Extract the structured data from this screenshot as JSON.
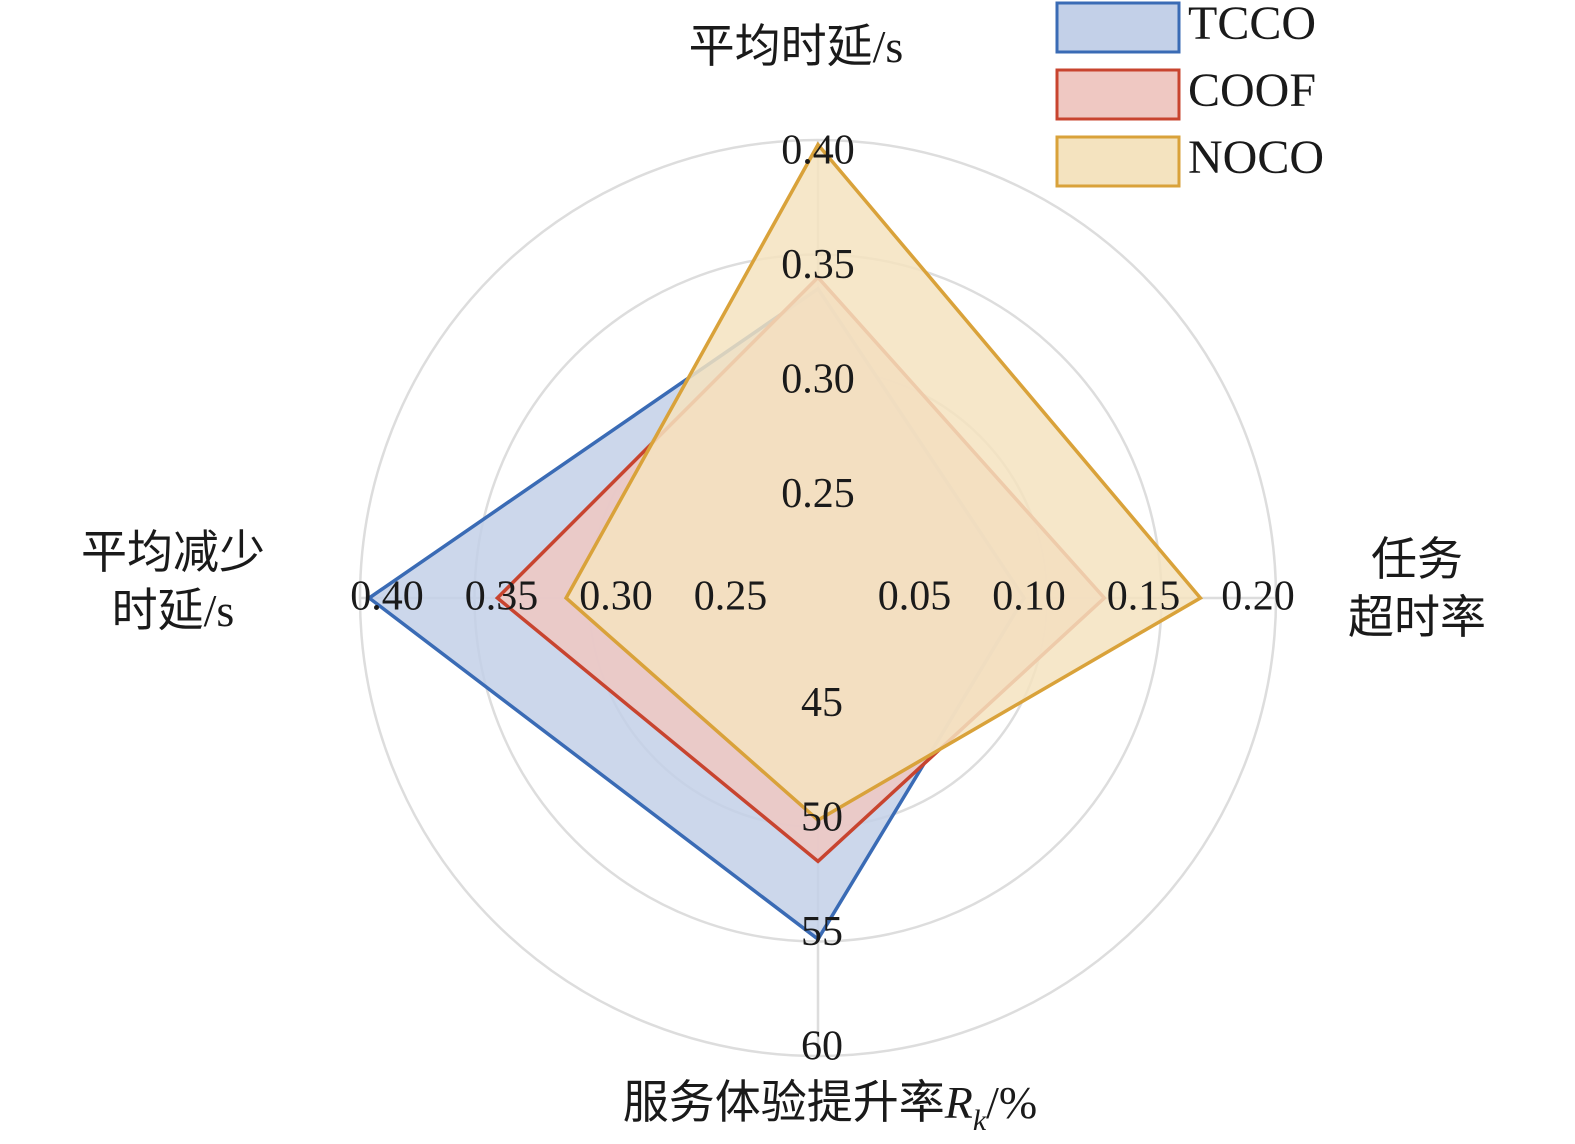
{
  "chart_data": {
    "type": "radar",
    "axes": [
      {
        "key": "avg_delay",
        "title_lines": [
          "平均时延/s"
        ],
        "tick_labels": [
          "0.25",
          "0.30",
          "0.35",
          "0.40"
        ],
        "range": [
          0.2,
          0.4
        ]
      },
      {
        "key": "timeout_rate",
        "title_lines": [
          "任务",
          "超时率"
        ],
        "tick_labels": [
          "0.05",
          "0.10",
          "0.15",
          "0.20"
        ],
        "range": [
          0.0,
          0.2
        ]
      },
      {
        "key": "service_improvement",
        "title_main": "服务体验提升率",
        "title_var": "R",
        "title_sub": "k",
        "title_unit": "/%",
        "tick_labels": [
          "45",
          "50",
          "55",
          "60"
        ],
        "range": [
          40,
          60
        ]
      },
      {
        "key": "avg_delay_reduction",
        "title_lines": [
          "平均减少",
          "时延/s"
        ],
        "tick_labels": [
          "0.25",
          "0.30",
          "0.35",
          "0.40"
        ],
        "range": [
          0.2,
          0.4
        ]
      }
    ],
    "series": [
      {
        "name": "TCCO",
        "values": [
          0.335,
          0.09,
          54.9,
          0.396
        ],
        "stroke": "#3a6bb5",
        "fill": "#c3d0e8"
      },
      {
        "name": "COOF",
        "values": [
          0.34,
          0.125,
          51.5,
          0.34
        ],
        "stroke": "#c8442f",
        "fill": "#efc8c2"
      },
      {
        "name": "NOCO",
        "values": [
          0.398,
          0.167,
          49.7,
          0.31
        ],
        "stroke": "#d9a23a",
        "fill": "#f4e3bf"
      }
    ],
    "legend": {
      "position": "top-right"
    },
    "grid": true
  }
}
